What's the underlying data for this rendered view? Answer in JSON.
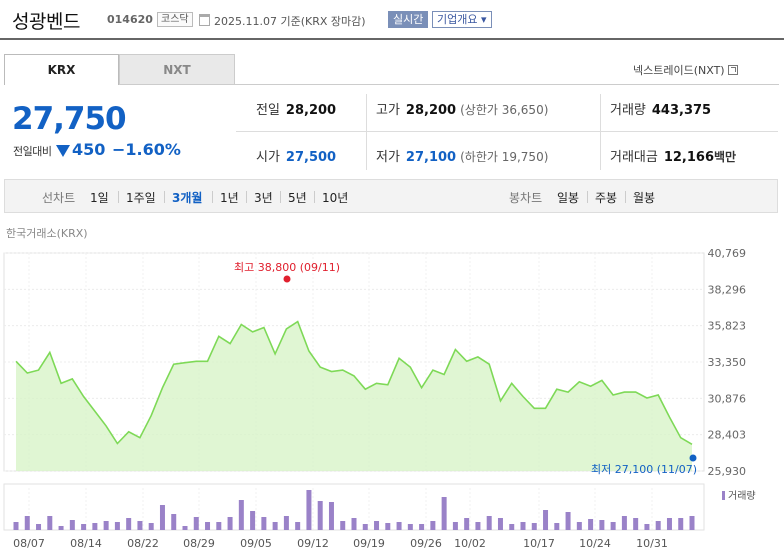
{
  "header": {
    "name": "성광벤드",
    "code": "014620",
    "market": "코스닥",
    "date": "2025.11.07 기준(KRX 장마감)",
    "realtime": "실시간",
    "corp_info": "기업개요 ▾"
  },
  "tabs": {
    "krx": "KRX",
    "nxt": "NXT"
  },
  "nxt_link": "넥스트레이드(NXT)",
  "price": {
    "current": "27,750",
    "change_label": "전일대비",
    "change_value": "450",
    "change_pct": "−1.60%"
  },
  "stats": {
    "prev_label": "전일",
    "prev_value": "28,200",
    "high_label": "고가",
    "high_value": "28,200",
    "high_sub": "(상한가 36,650)",
    "vol_label": "거래량",
    "vol_value": "443,375",
    "open_label": "시가",
    "open_value": "27,500",
    "low_label": "저가",
    "low_value": "27,100",
    "low_sub": "(하한가 19,750)",
    "amt_label": "거래대금",
    "amt_value": "12,166",
    "amt_unit": "백만"
  },
  "toolbar": {
    "line_label": "선차트",
    "periods": [
      "1일",
      "1주일",
      "3개월",
      "1년",
      "3년",
      "5년",
      "10년"
    ],
    "active_period": "3개월",
    "candle_label": "봉차트",
    "candles": [
      "일봉",
      "주봉",
      "월봉"
    ]
  },
  "exchange_label": "한국거래소(KRX)",
  "colors": {
    "up": "#e0202e",
    "down": "#1261c4",
    "line": "#7ed957",
    "area": "#d8f4c8",
    "volume": "#9a82c8"
  },
  "chart_data": {
    "type": "area",
    "y_ticks": [
      "40,769",
      "38,296",
      "35,823",
      "33,350",
      "30,876",
      "28,403",
      "25,930"
    ],
    "ylim": [
      25930,
      40769
    ],
    "x_ticks": [
      "08/07",
      "08/14",
      "08/22",
      "08/29",
      "09/05",
      "09/12",
      "09/19",
      "09/26",
      "10/02",
      "10/17",
      "10/24",
      "10/31"
    ],
    "max_annotation": "최고 38,800 (09/11)",
    "min_annotation": "최저 27,100 (11/07)",
    "volume_label": "거래량",
    "prices": [
      33400,
      32600,
      32800,
      34000,
      31900,
      32200,
      31000,
      30000,
      29000,
      27800,
      28600,
      28200,
      29700,
      31600,
      33200,
      33300,
      33400,
      33400,
      35100,
      34600,
      35900,
      35400,
      35700,
      33900,
      35600,
      36100,
      34100,
      33000,
      32700,
      32800,
      32400,
      31500,
      31900,
      31800,
      33600,
      33000,
      31600,
      32800,
      32500,
      34200,
      33400,
      33700,
      33200,
      30700,
      31900,
      31000,
      30200,
      30200,
      31500,
      31300,
      32000,
      31700,
      32100,
      31100,
      31300,
      31300,
      30900,
      31100,
      29600,
      28200,
      27750
    ],
    "volumes": [
      8,
      14,
      6,
      14,
      4,
      10,
      6,
      7,
      9,
      8,
      12,
      9,
      7,
      25,
      16,
      4,
      13,
      8,
      8,
      13,
      30,
      19,
      13,
      8,
      14,
      8,
      40,
      29,
      28,
      9,
      12,
      6,
      9,
      7,
      8,
      6,
      6,
      9,
      33,
      8,
      12,
      8,
      14,
      12,
      6,
      8,
      7,
      20,
      7,
      18,
      8,
      11,
      10,
      8,
      14,
      12,
      6,
      9,
      12,
      12,
      14
    ]
  }
}
